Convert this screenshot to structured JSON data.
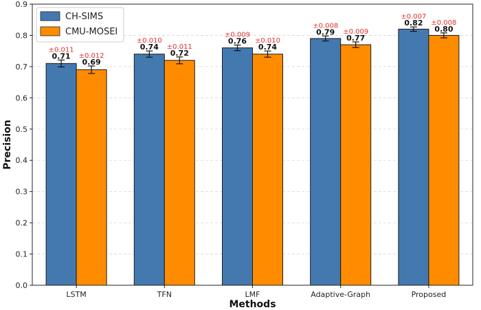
{
  "chart_data": {
    "type": "bar",
    "xlabel": "Methods",
    "ylabel": "Precision",
    "ylim": [
      0,
      0.9
    ],
    "yticks": [
      "0.0",
      "0.1",
      "0.2",
      "0.3",
      "0.4",
      "0.5",
      "0.6",
      "0.7",
      "0.8",
      "0.9"
    ],
    "categories": [
      "LSTM",
      "TFN",
      "LMF",
      "Adaptive-Graph",
      "Proposed"
    ],
    "grid": "horizontal dashed",
    "legend_position": "top-left",
    "series": [
      {
        "name": "CH-SIMS",
        "color": "#4479b0",
        "values": [
          0.71,
          0.74,
          0.76,
          0.79,
          0.82
        ],
        "value_labels": [
          "0.71",
          "0.74",
          "0.76",
          "0.79",
          "0.82"
        ],
        "errors": [
          0.011,
          0.01,
          0.009,
          0.008,
          0.007
        ],
        "error_labels": [
          "±0.011",
          "±0.010",
          "±0.009",
          "±0.008",
          "±0.007"
        ]
      },
      {
        "name": "CMU-MOSEI",
        "color": "#ff8c00",
        "values": [
          0.69,
          0.72,
          0.74,
          0.77,
          0.8
        ],
        "value_labels": [
          "0.69",
          "0.72",
          "0.74",
          "0.77",
          "0.80"
        ],
        "errors": [
          0.012,
          0.011,
          0.01,
          0.009,
          0.008
        ],
        "error_labels": [
          "±0.012",
          "±0.011",
          "±0.010",
          "±0.009",
          "±0.008"
        ]
      }
    ]
  }
}
